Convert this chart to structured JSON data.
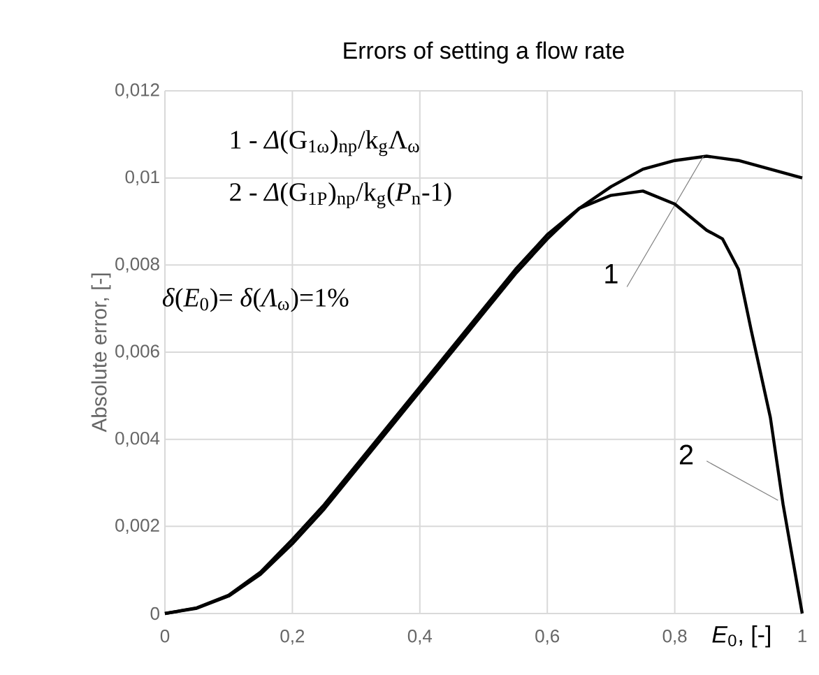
{
  "chart_data": {
    "type": "line",
    "title": "Errors of setting a flow rate",
    "xlabel": "*E*$_{0}$, [-]",
    "ylabel": "Absolute error, [-]",
    "xlim": [
      0,
      1
    ],
    "ylim": [
      0,
      0.012
    ],
    "xticks": [
      0,
      {
        "value": 0.2,
        "label": "0,2"
      },
      {
        "value": 0.4,
        "label": "0,4"
      },
      {
        "value": 0.6,
        "label": "0,6"
      },
      {
        "value": 0.8,
        "label": "0,8"
      },
      1
    ],
    "yticks": [
      0,
      {
        "value": 0.002,
        "label": "0,002"
      },
      {
        "value": 0.004,
        "label": "0,004"
      },
      {
        "value": 0.006,
        "label": "0,006"
      },
      {
        "value": 0.008,
        "label": "0,008"
      },
      {
        "value": 0.01,
        "label": "0,01"
      },
      {
        "value": 0.012,
        "label": "0,012"
      }
    ],
    "grid": true,
    "legend": false,
    "marker": "none",
    "line_style": "solid",
    "annotations": [
      "1 - *Δ*(G$_{1ω}$)$_{np}$/k$_{g}$Λ$_{ω}$",
      "2 - *Δ*(G$_{1P}$)$_{np}$/k$_{g}$(*P*$_{n}$-1)",
      "*δ*(*E*$_{0}$)= *δ*(*Λ*$_{ω}$)=1%"
    ],
    "series": [
      {
        "name": "1",
        "color": "#000000",
        "x": [
          0,
          0.05,
          0.1,
          0.15,
          0.2,
          0.25,
          0.3,
          0.35,
          0.4,
          0.45,
          0.5,
          0.55,
          0.6,
          0.65,
          0.7,
          0.75,
          0.8,
          0.85,
          0.9,
          0.95,
          1.0
        ],
        "values": [
          0,
          0.00012,
          0.0004,
          0.0009,
          0.0016,
          0.0024,
          0.0033,
          0.0042,
          0.0051,
          0.006,
          0.0069,
          0.0078,
          0.0086,
          0.0093,
          0.0098,
          0.0102,
          0.0104,
          0.0105,
          0.0104,
          0.0102,
          0.01
        ]
      },
      {
        "name": "2",
        "color": "#000000",
        "x": [
          0,
          0.05,
          0.1,
          0.15,
          0.2,
          0.25,
          0.3,
          0.35,
          0.4,
          0.45,
          0.5,
          0.55,
          0.6,
          0.65,
          0.7,
          0.75,
          0.8,
          0.85,
          0.875,
          0.9,
          0.92,
          0.95,
          0.97,
          1.0
        ],
        "values": [
          0,
          0.00013,
          0.00042,
          0.00095,
          0.0017,
          0.0025,
          0.0034,
          0.0043,
          0.0052,
          0.0061,
          0.007,
          0.0079,
          0.0087,
          0.0093,
          0.0096,
          0.0097,
          0.0094,
          0.0088,
          0.0086,
          0.0079,
          0.0065,
          0.0045,
          0.0025,
          0
        ]
      }
    ]
  }
}
